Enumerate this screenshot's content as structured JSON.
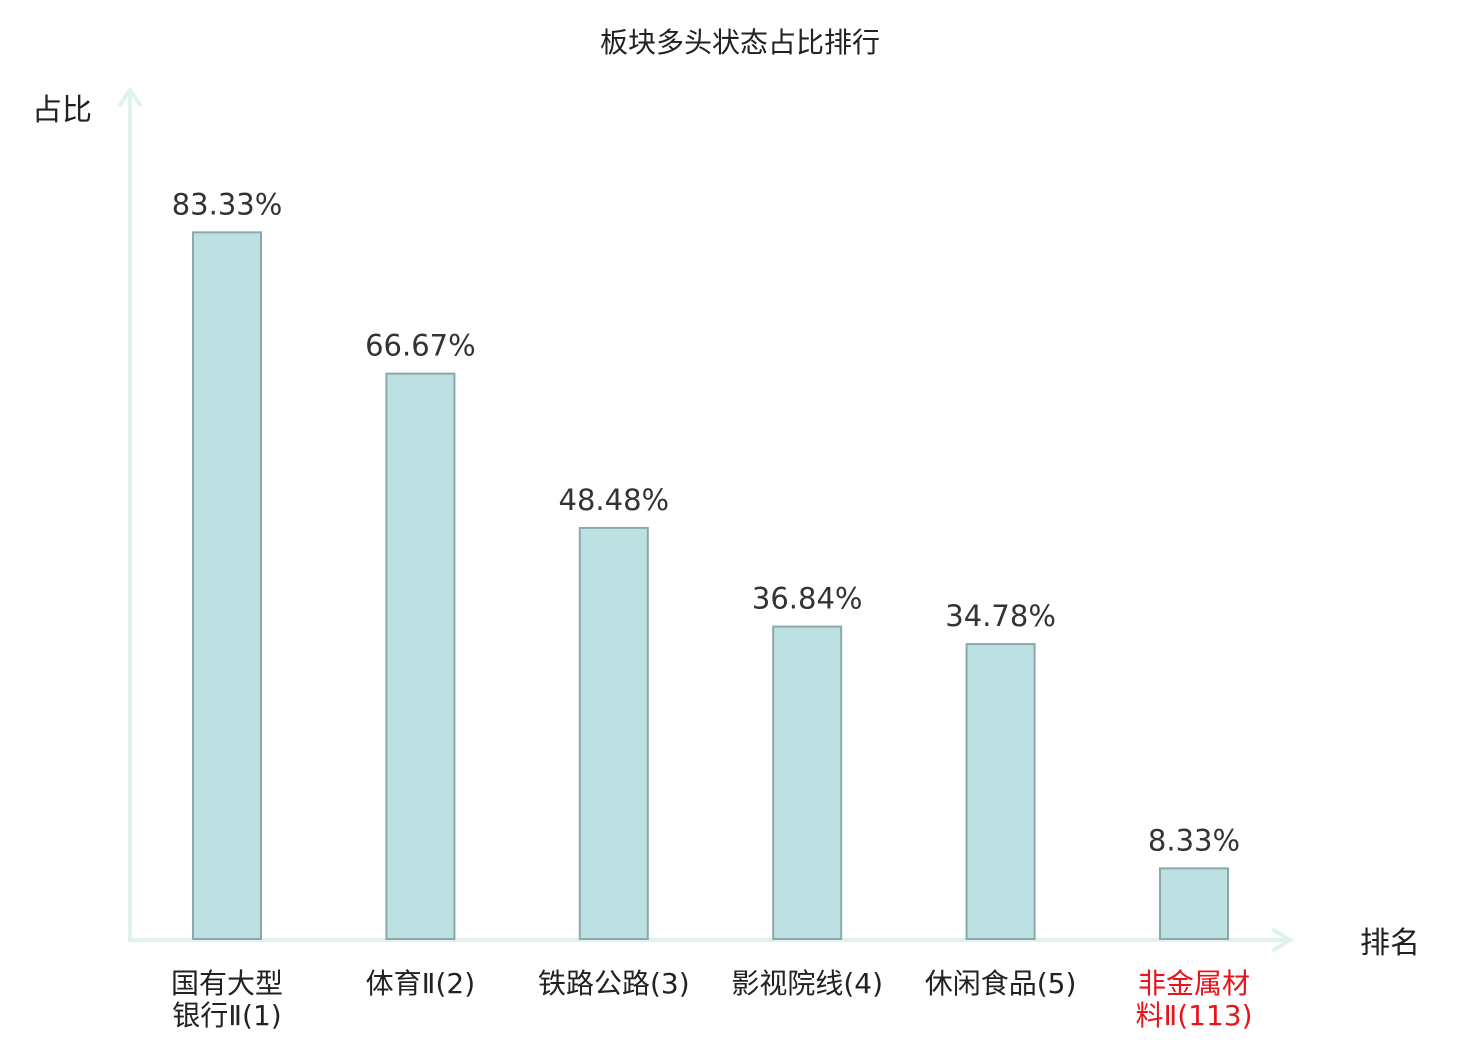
{
  "chart_data": {
    "type": "bar",
    "title": "板块多头状态占比排行",
    "ylabel": "占比",
    "xlabel": "排名",
    "categories": [
      [
        "国有大型",
        "银行Ⅱ(1)"
      ],
      [
        "体育Ⅱ(2)"
      ],
      [
        "铁路公路(3)"
      ],
      [
        "影视院线(4)"
      ],
      [
        "休闲食品(5)"
      ],
      [
        "非金属材",
        "料Ⅱ(113)"
      ]
    ],
    "values": [
      83.33,
      66.67,
      48.48,
      36.84,
      34.78,
      8.33
    ],
    "value_labels": [
      "83.33%",
      "66.67%",
      "48.48%",
      "36.84%",
      "34.78%",
      "8.33%"
    ],
    "highlight_index": 5,
    "ylim": [
      0,
      100
    ],
    "grid": false,
    "colors": {
      "bar_fill": "#bde0e2",
      "bar_stroke": "#8aa9aa",
      "axis": "#dff2ef",
      "highlight_label": "#e8141b",
      "text": "#222222"
    }
  }
}
